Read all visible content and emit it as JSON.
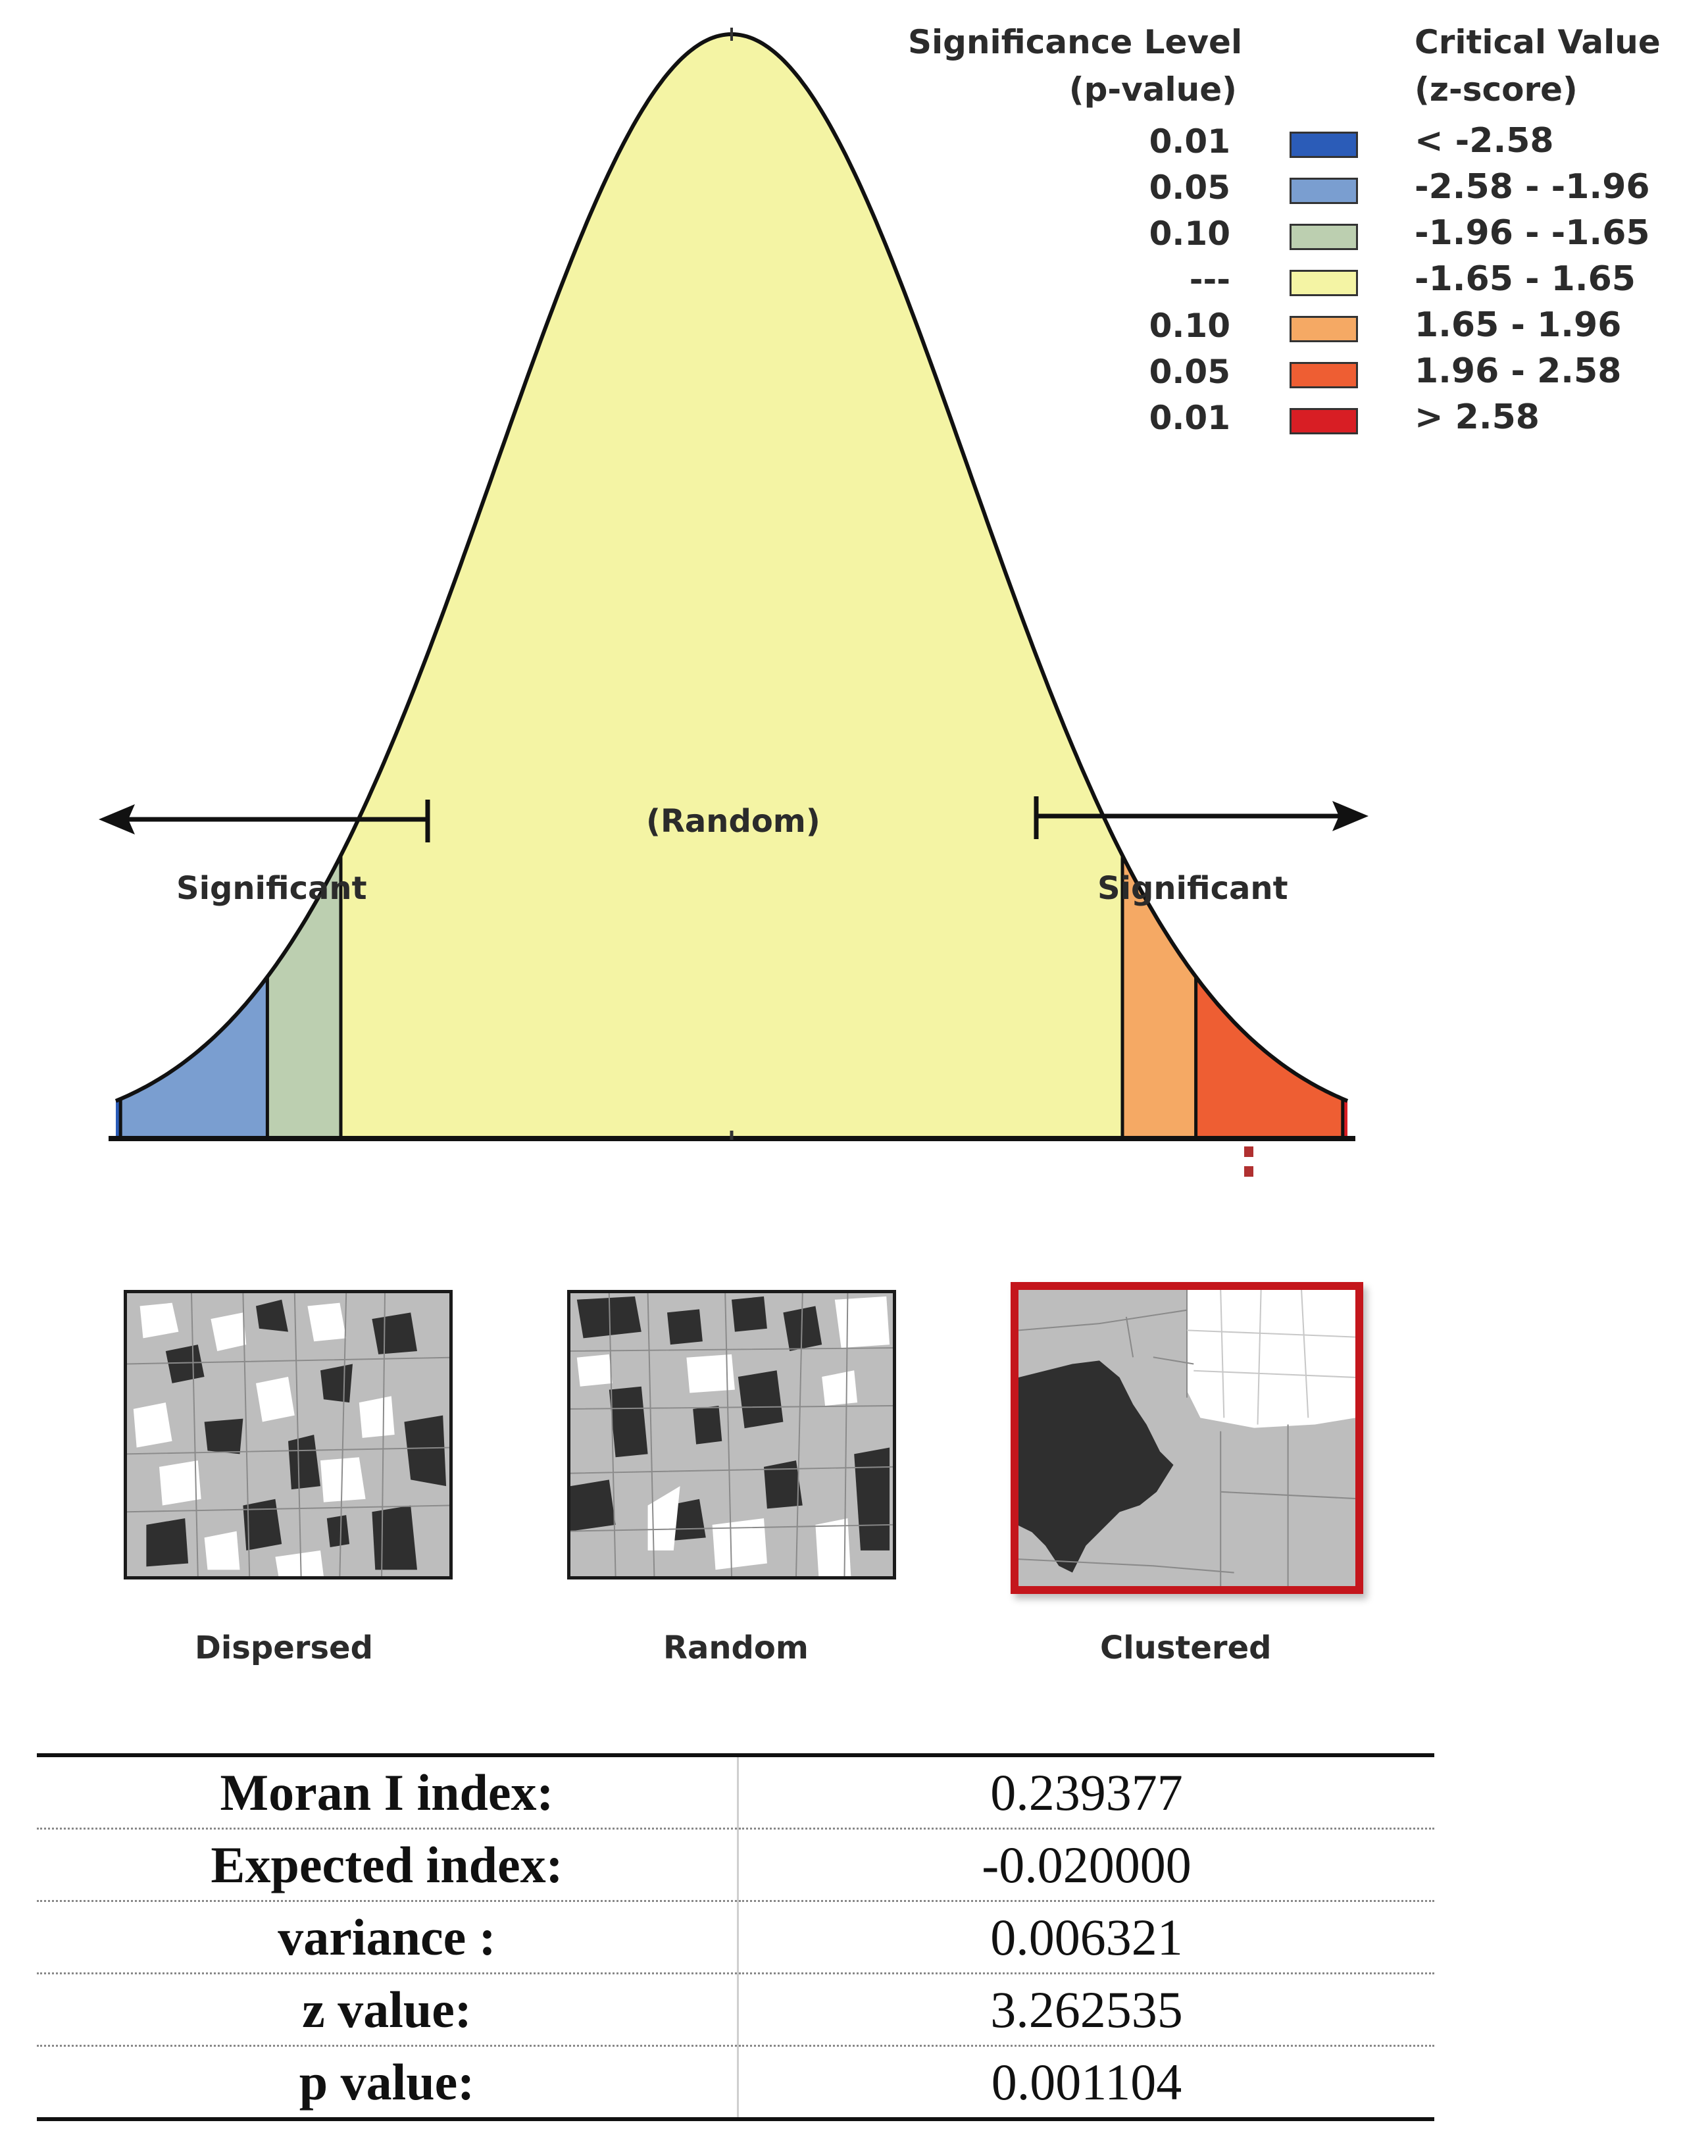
{
  "legend": {
    "p_header_line1": "Significance Level",
    "p_header_line2": "(p-value)",
    "z_header_line1": "Critical Value",
    "z_header_line2": "(z-score)",
    "rows": [
      {
        "p": "0.01",
        "z": "< -2.58",
        "color": "#2b5cb8"
      },
      {
        "p": "0.05",
        "z": "-2.58 - -1.96",
        "color": "#7a9ed0"
      },
      {
        "p": "0.10",
        "z": "-1.96 - -1.65",
        "color": "#bccfb0"
      },
      {
        "p": "---",
        "z": "-1.65 - 1.65",
        "color": "#f4f4a4"
      },
      {
        "p": "0.10",
        "z": "1.65 - 1.96",
        "color": "#f5a964"
      },
      {
        "p": "0.05",
        "z": "1.96 - 2.58",
        "color": "#ee5e33"
      },
      {
        "p": "0.01",
        "z": "> 2.58",
        "color": "#d81e24"
      }
    ]
  },
  "curve": {
    "random_label": "(Random)",
    "left_label": "Significant",
    "right_label": "Significant"
  },
  "maps": [
    {
      "label": "Dispersed"
    },
    {
      "label": "Random"
    },
    {
      "label": "Clustered"
    }
  ],
  "stats": [
    {
      "key": "Moran I index:",
      "value": "0.239377"
    },
    {
      "key": "Expected index:",
      "value": "-0.020000"
    },
    {
      "key": "variance :",
      "value": "0.006321"
    },
    {
      "key": "z value:",
      "value": "3.262535"
    },
    {
      "key": "p value:",
      "value": "0.001104"
    }
  ]
}
